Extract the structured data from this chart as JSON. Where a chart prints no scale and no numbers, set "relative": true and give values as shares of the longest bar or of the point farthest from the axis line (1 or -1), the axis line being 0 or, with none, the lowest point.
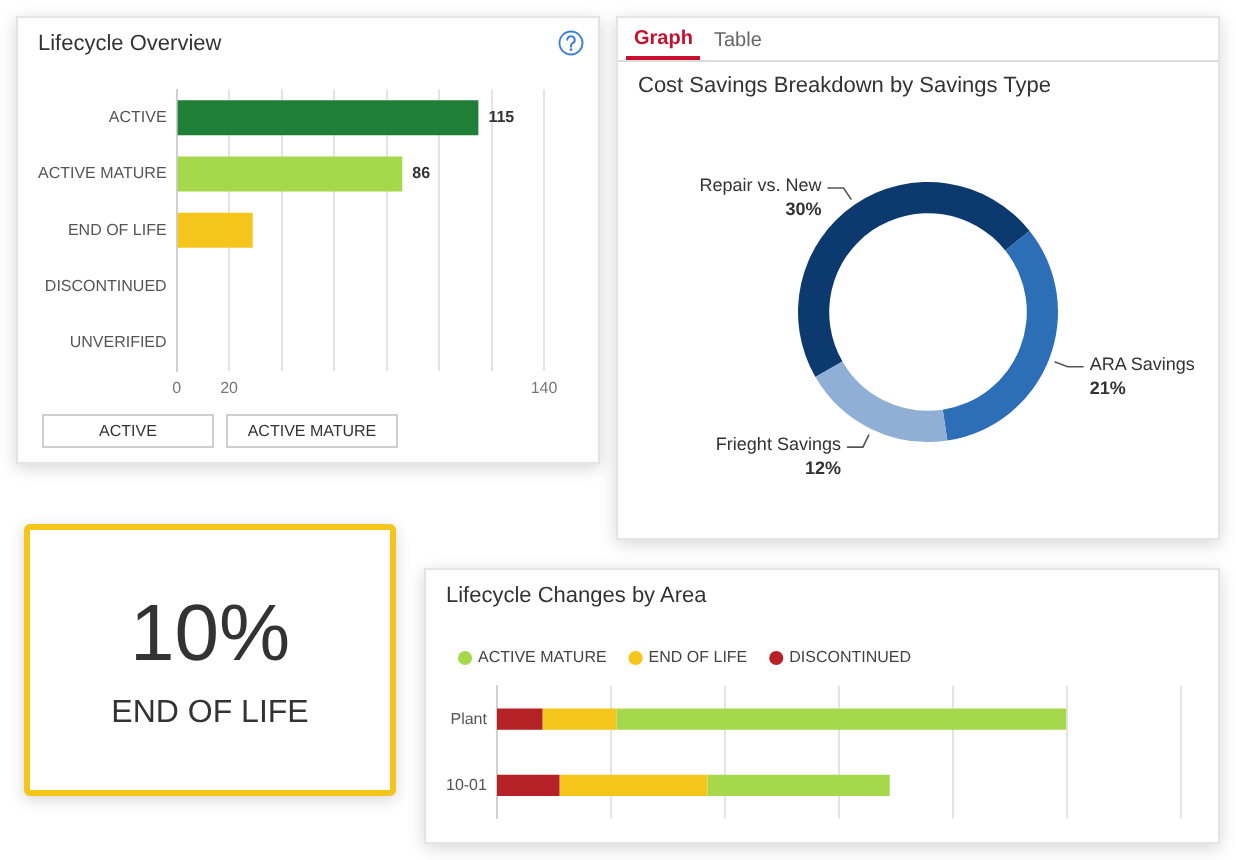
{
  "chart_data": [
    {
      "type": "bar",
      "orientation": "horizontal",
      "title": "Lifecycle Overview",
      "categories": [
        "ACTIVE",
        "ACTIVE MATURE",
        "END OF LIFE",
        "DISCONTINUED",
        "UNVERIFIED"
      ],
      "values": [
        115,
        86,
        29,
        null,
        null
      ],
      "colors": [
        "#1f7f36",
        "#a6d84b",
        "#f6c51c",
        "#b42227",
        "#d9d9d9"
      ],
      "value_labels": [
        "115",
        "86",
        null,
        null,
        null
      ],
      "xlim": [
        0,
        140
      ],
      "xticks": [
        0,
        20,
        {
          "value": 40,
          "label": null
        },
        {
          "value": 60,
          "label": null
        },
        {
          "value": 80,
          "label": null
        },
        {
          "value": 100,
          "label": null
        },
        {
          "value": 120,
          "label": null
        },
        140
      ],
      "grid": "x",
      "annotations": [
        "ACTIVE",
        "ACTIVE MATURE"
      ]
    },
    {
      "type": "donut",
      "title": "Cost Savings Breakdown by Savings Type",
      "categories": [
        "Repair vs. New",
        "ARA Savings",
        "Frieght Savings"
      ],
      "values": [
        30,
        21,
        12
      ],
      "colors": [
        "#0d3a6e",
        "#2d6fb7",
        "#8fb0d4"
      ],
      "value_labels": [
        "30%",
        "21%",
        "12%"
      ],
      "annotations": [
        "Graph",
        "Table"
      ]
    },
    {
      "type": "other",
      "annotations": [
        "10%",
        "END OF LIFE"
      ],
      "color": "#f6c51c"
    },
    {
      "type": "bar",
      "orientation": "horizontal",
      "stacked": true,
      "relative": true,
      "title": "Lifecycle Changes by Area",
      "categories": [
        "Plant",
        "10-01"
      ],
      "series": [
        {
          "name": "DISCONTINUED",
          "color": "#b42227",
          "values": [
            0.08,
            0.11
          ]
        },
        {
          "name": "END OF LIFE",
          "color": "#f6c51c",
          "values": [
            0.13,
            0.26
          ]
        },
        {
          "name": "ACTIVE MATURE",
          "color": "#a6d84b",
          "values": [
            0.79,
            0.32
          ]
        }
      ],
      "legend": "top left",
      "grid": "x"
    }
  ]
}
